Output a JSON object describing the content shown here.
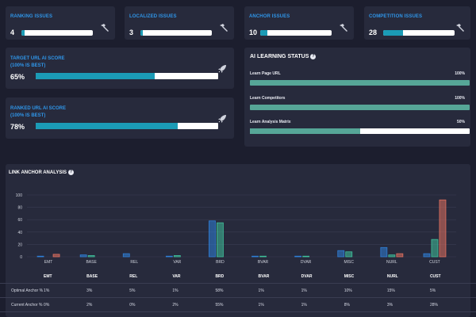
{
  "issues": [
    {
      "label": "RANKING ISSUES",
      "value": "4",
      "fill": 0.04
    },
    {
      "label": "LOCALIZED ISSUES",
      "value": "3",
      "fill": 0.03
    },
    {
      "label": "ANCHOR ISSUES",
      "value": "10",
      "fill": 0.1
    },
    {
      "label": "COMPETITION ISSUES",
      "value": "28",
      "fill": 0.28
    }
  ],
  "scores": [
    {
      "label_line1": "TARGET URL AI SCORE",
      "label_line2": "(100% IS BEST)",
      "value": "65%",
      "fill": 0.65
    },
    {
      "label_line1": "RANKED URL AI SCORE",
      "label_line2": "(100% IS BEST)",
      "value": "78%",
      "fill": 0.78
    }
  ],
  "ai_status": {
    "title": "AI LEARNING STATUS",
    "rows": [
      {
        "label": "Learn Page URL",
        "pct": "100%",
        "fill": 1.0
      },
      {
        "label": "Learn Competitors",
        "pct": "100%",
        "fill": 1.0
      },
      {
        "label": "Learn Analysis Matrix",
        "pct": "50%",
        "fill": 0.5
      }
    ]
  },
  "chart_title": "LINK ANCHOR ANALYSIS",
  "chart_data": {
    "type": "bar",
    "categories": [
      "EMT",
      "BASE",
      "REL",
      "VAR",
      "BRD",
      "BVAR",
      "DVAR",
      "MISC",
      "NURL",
      "CUST"
    ],
    "ylim": [
      0,
      100
    ],
    "yticks": [
      0,
      20,
      40,
      60,
      80,
      100
    ],
    "series": [
      {
        "values": [
          1,
          3,
          5,
          1,
          58,
          1,
          1,
          10,
          15,
          5
        ],
        "color": "#2f7fd8"
      },
      {
        "values": [
          0,
          2,
          0,
          2,
          55,
          1,
          1,
          8,
          3,
          28
        ],
        "color": "#3fbf9a"
      },
      {
        "values": [
          4,
          0,
          0,
          0,
          0,
          0,
          0,
          0,
          5,
          92
        ],
        "color": "#e0705f"
      }
    ],
    "grid": true
  },
  "table": {
    "headers": [
      "EMT",
      "BASE",
      "REL",
      "VAR",
      "BRD",
      "BVAR",
      "DVAR",
      "MISC",
      "NURL",
      "CUST"
    ],
    "rows": [
      {
        "label": "Optimal Anchor %",
        "cells": [
          "1%",
          "3%",
          "5%",
          "1%",
          "58%",
          "1%",
          "1%",
          "10%",
          "15%",
          "5%"
        ]
      },
      {
        "label": "Current Anchor %",
        "cells": [
          "0%",
          "2%",
          "0%",
          "2%",
          "55%",
          "1%",
          "1%",
          "8%",
          "3%",
          "28%"
        ]
      }
    ]
  },
  "icons": {
    "issue": "hammer-icon",
    "score": "rocket-icon",
    "help": "help-circle-icon"
  }
}
